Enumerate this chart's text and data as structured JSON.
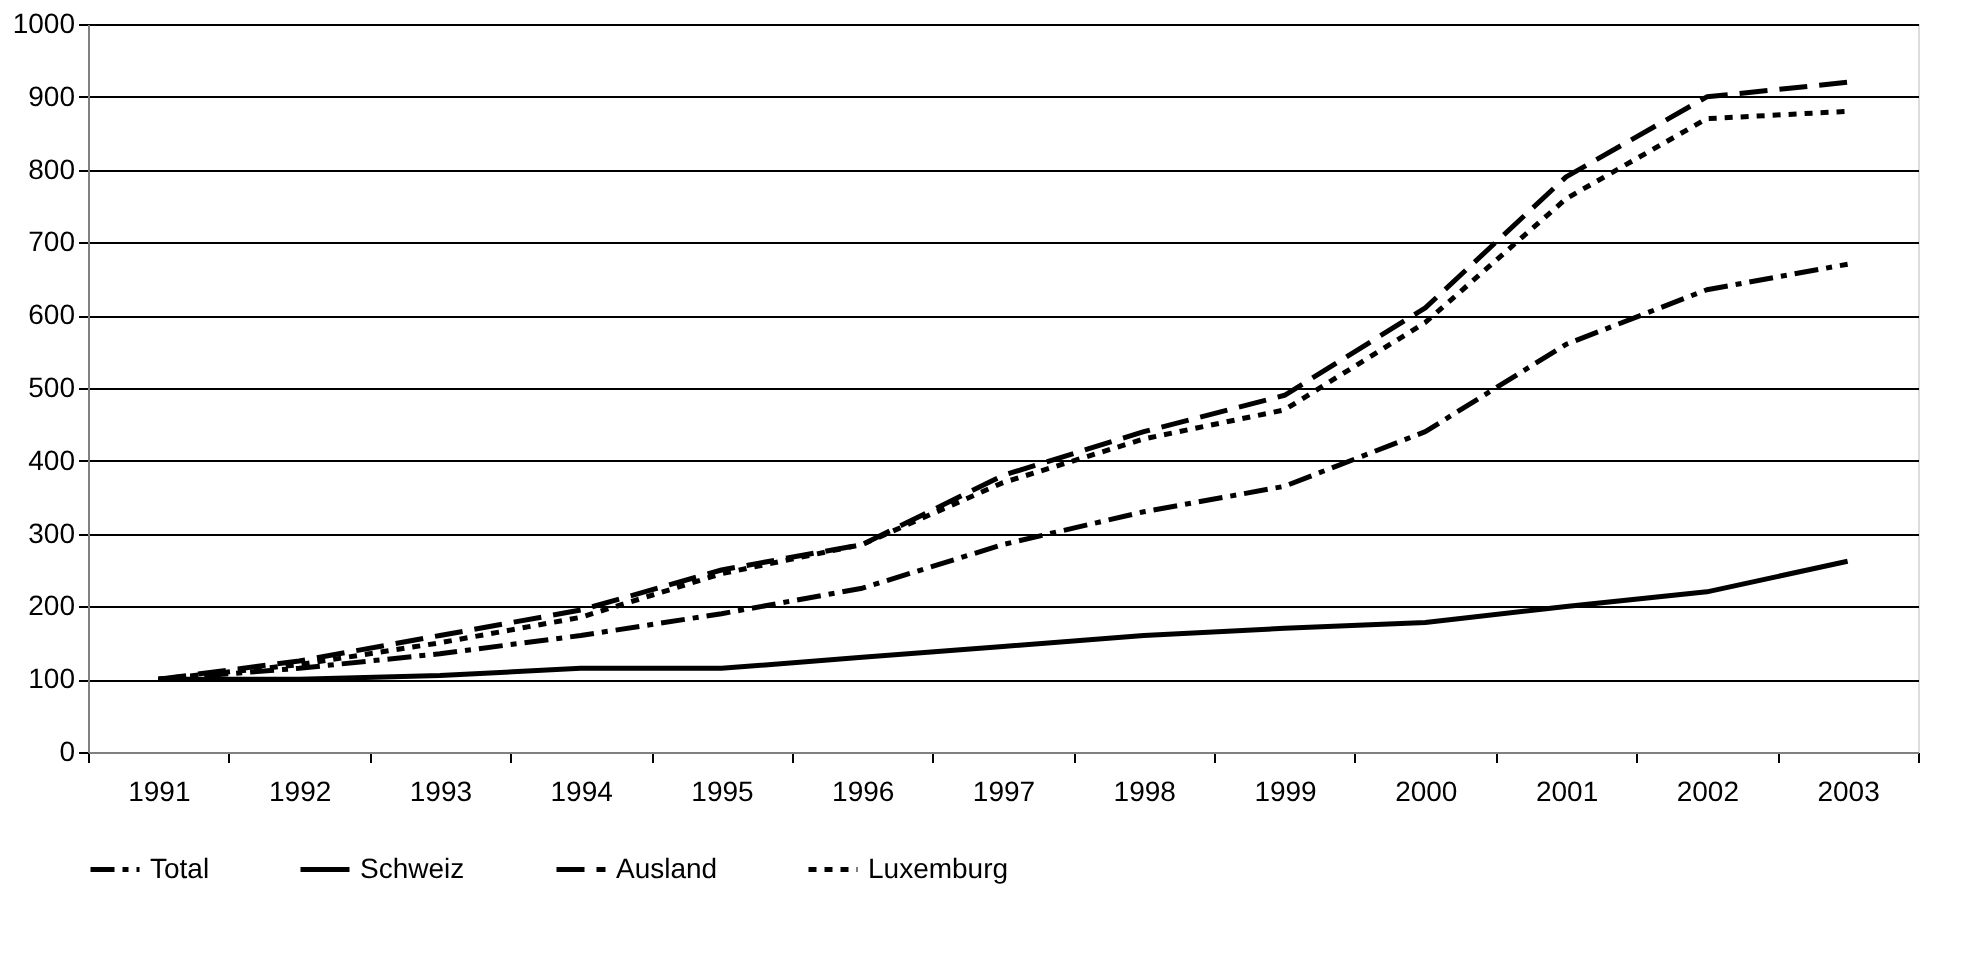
{
  "chart_data": {
    "type": "line",
    "categories": [
      "1991",
      "1992",
      "1993",
      "1994",
      "1995",
      "1996",
      "1997",
      "1998",
      "1999",
      "2000",
      "2001",
      "2002",
      "2003"
    ],
    "series": [
      {
        "name": "Total",
        "color": "#000000",
        "line_style": "dashdot",
        "values": [
          100,
          115,
          135,
          160,
          190,
          225,
          285,
          330,
          365,
          440,
          560,
          635,
          670
        ]
      },
      {
        "name": "Schweiz",
        "color": "#000000",
        "line_style": "solid",
        "values": [
          100,
          100,
          105,
          115,
          115,
          130,
          145,
          160,
          170,
          178,
          200,
          220,
          262
        ]
      },
      {
        "name": "Ausland",
        "color": "#000000",
        "line_style": "dashed",
        "values": [
          100,
          125,
          160,
          195,
          250,
          285,
          380,
          440,
          490,
          610,
          790,
          900,
          920
        ]
      },
      {
        "name": "Luxemburg",
        "color": "#000000",
        "line_style": "dotted",
        "values": [
          100,
          120,
          150,
          185,
          245,
          285,
          370,
          430,
          470,
          590,
          760,
          870,
          880
        ]
      }
    ],
    "ylim": [
      0,
      1000
    ],
    "yticks": [
      0,
      100,
      200,
      300,
      400,
      500,
      600,
      700,
      800,
      900,
      1000
    ],
    "grid": "y",
    "legend": "bottom",
    "marker": "none"
  }
}
